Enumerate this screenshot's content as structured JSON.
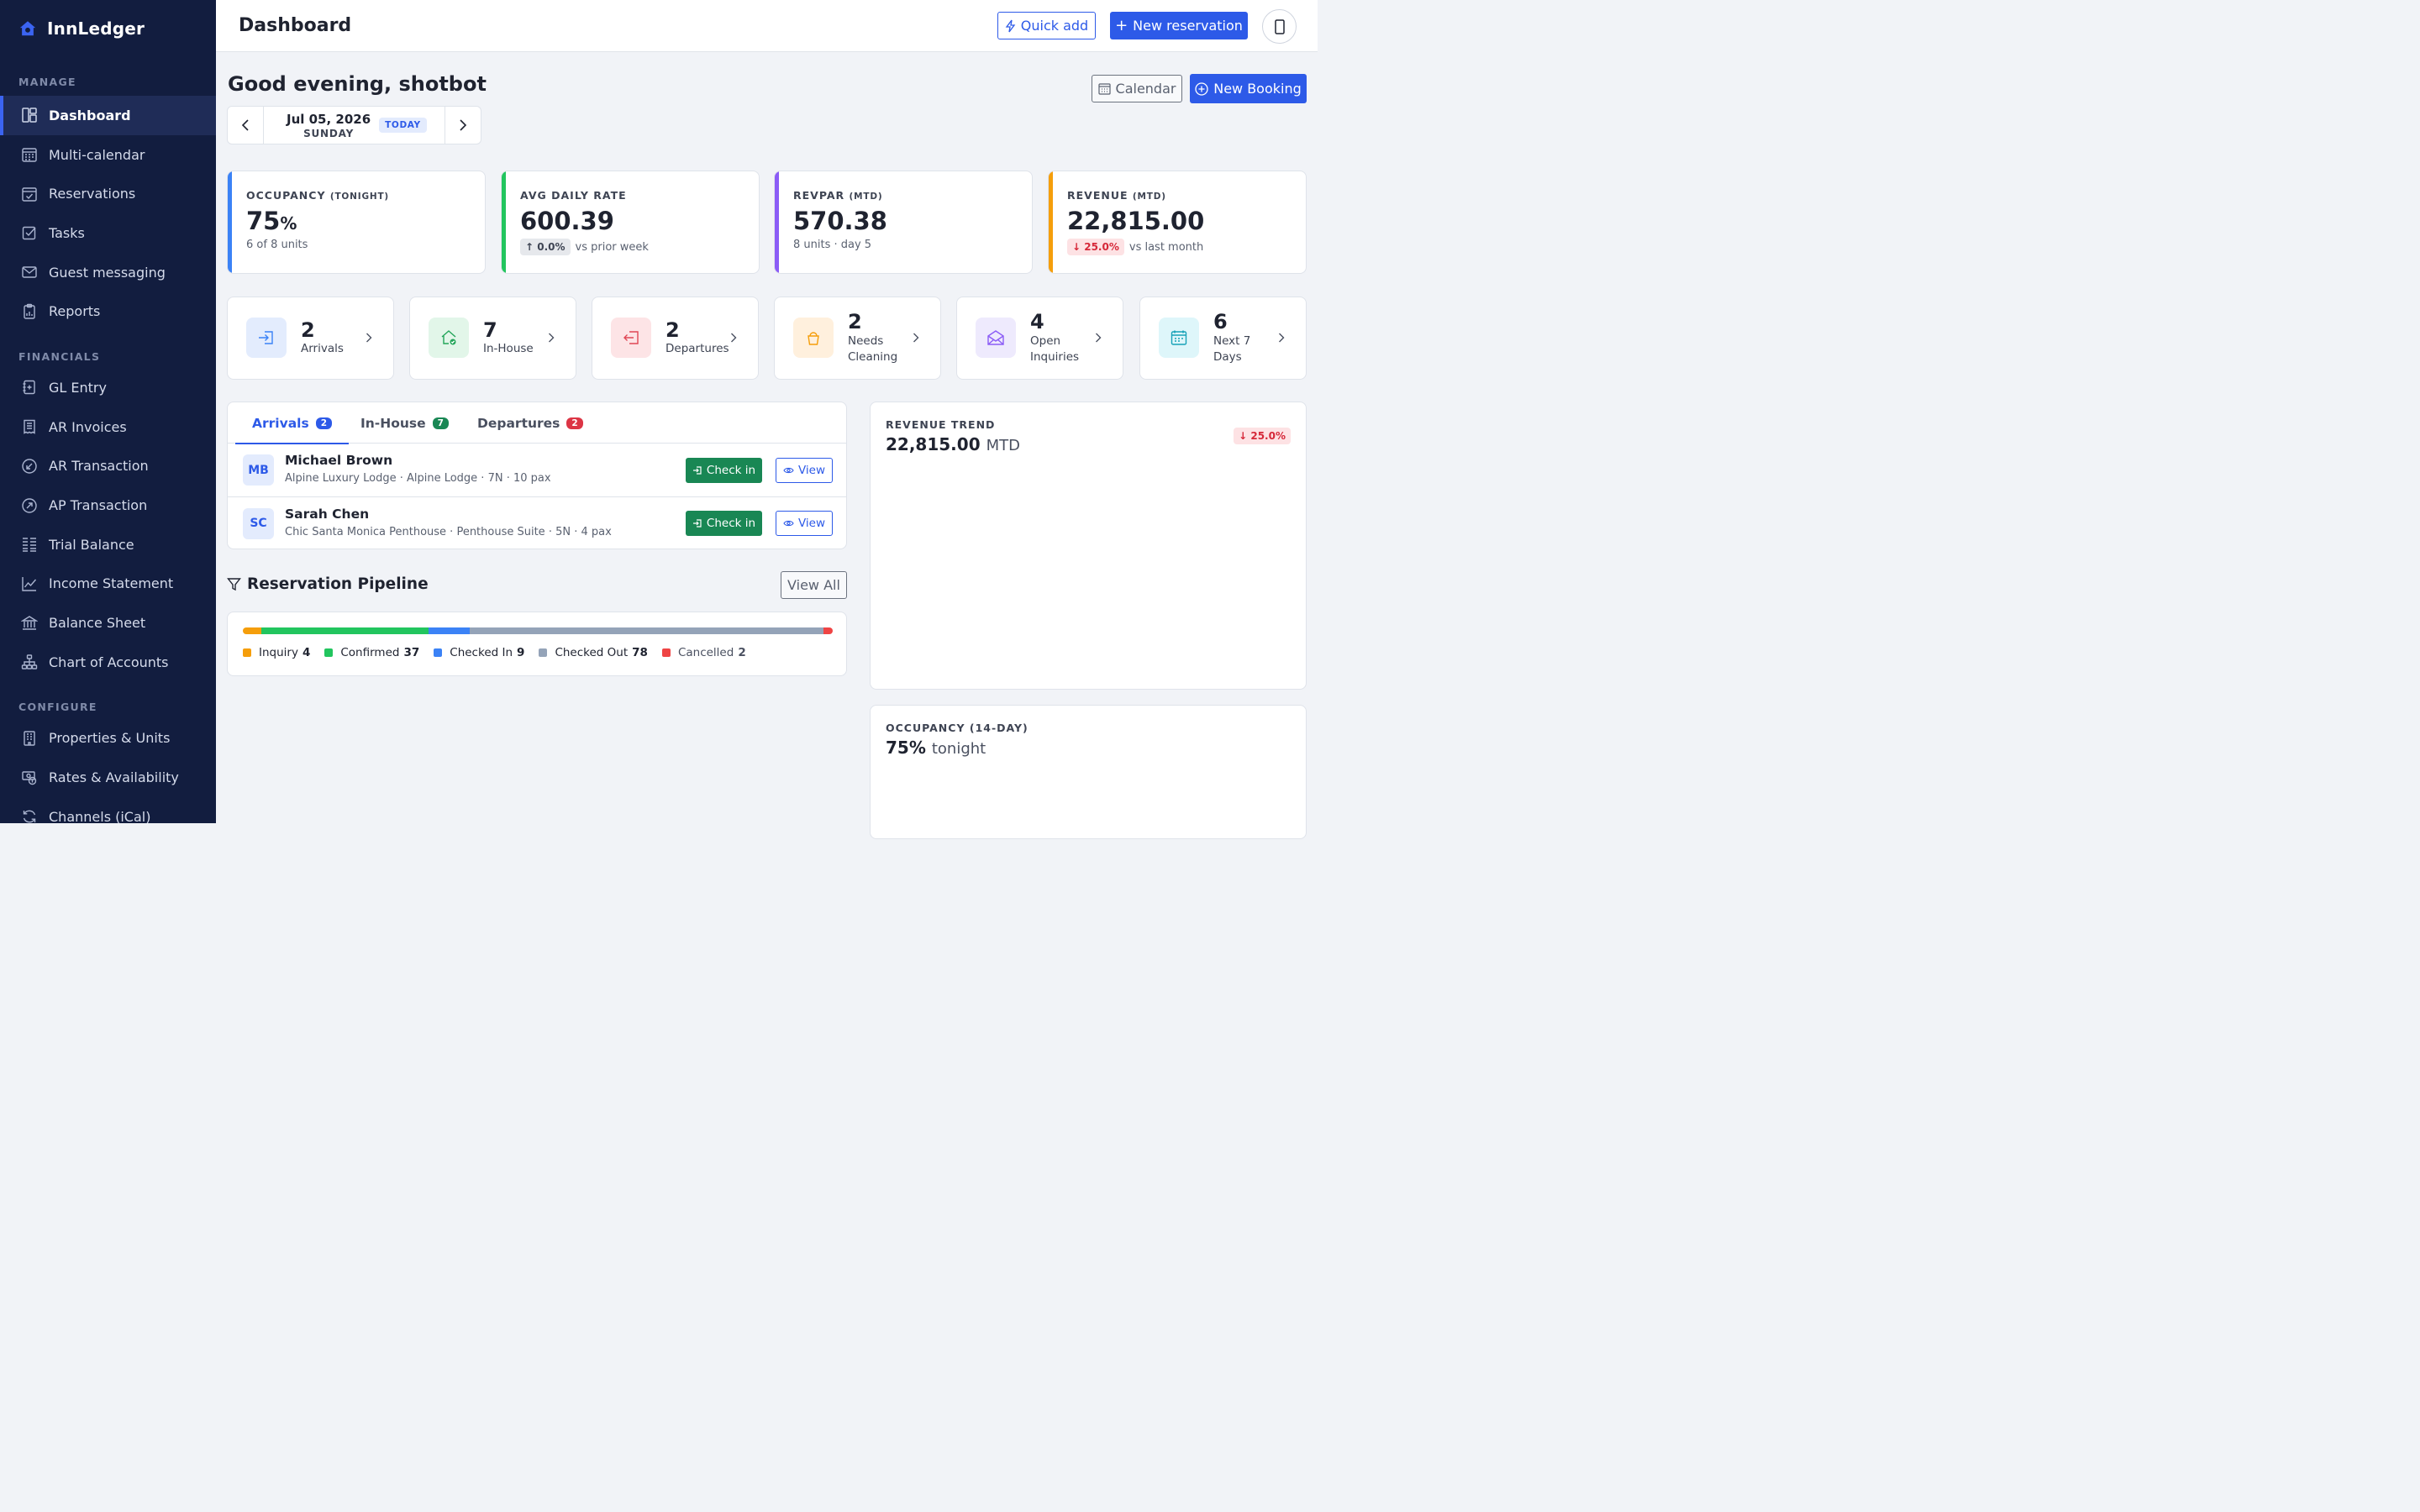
{
  "brand": {
    "name": "InnLedger"
  },
  "sidebar": {
    "sections": {
      "manage": "MANAGE",
      "financials": "FINANCIALS",
      "configure": "CONFIGURE"
    },
    "manage_items": [
      {
        "label": "Dashboard",
        "icon": "dashboard-icon"
      },
      {
        "label": "Multi-calendar",
        "icon": "calendar-grid-icon"
      },
      {
        "label": "Reservations",
        "icon": "calendar-check-icon"
      },
      {
        "label": "Tasks",
        "icon": "checkbox-icon"
      },
      {
        "label": "Guest messaging",
        "icon": "envelope-icon"
      },
      {
        "label": "Reports",
        "icon": "report-icon"
      }
    ],
    "financial_items": [
      {
        "label": "GL Entry",
        "icon": "journal-plus-icon"
      },
      {
        "label": "AR Invoices",
        "icon": "receipt-icon"
      },
      {
        "label": "AR Transaction",
        "icon": "arrow-down-left-circle-icon"
      },
      {
        "label": "AP Transaction",
        "icon": "arrow-up-right-circle-icon"
      },
      {
        "label": "Trial Balance",
        "icon": "list-columns-icon"
      },
      {
        "label": "Income Statement",
        "icon": "graph-up-icon"
      },
      {
        "label": "Balance Sheet",
        "icon": "bank-icon"
      },
      {
        "label": "Chart of Accounts",
        "icon": "hierarchy-icon"
      }
    ],
    "configure_items": [
      {
        "label": "Properties & Units",
        "icon": "building-icon"
      },
      {
        "label": "Rates & Availability",
        "icon": "cash-coin-icon"
      },
      {
        "label": "Channels (iCal)",
        "icon": "sync-icon"
      }
    ]
  },
  "topbar": {
    "title": "Dashboard",
    "quick_add": "Quick add",
    "new_reservation": "New reservation"
  },
  "main": {
    "greeting": "Good evening, shotbot",
    "date": {
      "main": "Jul 05, 2026",
      "weekday": "SUNDAY",
      "today": "TODAY"
    },
    "calendar_button": "Calendar",
    "new_booking_button": "New Booking"
  },
  "kpis": [
    {
      "label": "OCCUPANCY",
      "qualifier": "(TONIGHT)",
      "value": "75",
      "unit": "%",
      "sub": "6 of 8 units",
      "accent": "#3b82f6"
    },
    {
      "label": "AVG DAILY RATE",
      "qualifier": "",
      "value": "600.39",
      "chip": "↑ 0.0%",
      "sub": "vs prior week",
      "accent": "#22c55e"
    },
    {
      "label": "REVPAR",
      "qualifier": "(MTD)",
      "value": "570.38",
      "sub": "8 units · day 5",
      "accent": "#8b5cf6"
    },
    {
      "label": "REVENUE",
      "qualifier": "(MTD)",
      "value": "22,815.00",
      "chip": "↓ 25.0%",
      "sub": "vs last month",
      "accent": "#f59e0b"
    }
  ],
  "tiles": [
    {
      "num": "2",
      "label": "Arrivals",
      "icon": "box-arrow-in-icon",
      "bg": "#e3ecfd",
      "fg": "#3b82f6"
    },
    {
      "num": "7",
      "label": "In-House",
      "icon": "house-check-icon",
      "bg": "#e2f6e9",
      "fg": "#22a559"
    },
    {
      "num": "2",
      "label": "Departures",
      "icon": "box-arrow-left-icon",
      "bg": "#fde4e6",
      "fg": "#e04755"
    },
    {
      "num": "2",
      "label": "Needs Cleaning",
      "icon": "bucket-icon",
      "bg": "#fff0dd",
      "fg": "#f59e0b"
    },
    {
      "num": "4",
      "label": "Open Inquiries",
      "icon": "envelope-open-icon",
      "bg": "#eeeafd",
      "fg": "#8b5cf6"
    },
    {
      "num": "6",
      "label": "Next 7 Days",
      "icon": "calendar-week-icon",
      "bg": "#def6fa",
      "fg": "#17a2b8"
    }
  ],
  "guest_tabs": [
    {
      "label": "Arrivals",
      "count": "2",
      "color": "#2d5ae8"
    },
    {
      "label": "In-House",
      "count": "7",
      "color": "#198754"
    },
    {
      "label": "Departures",
      "count": "2",
      "color": "#dc3545"
    }
  ],
  "arrivals": [
    {
      "initials": "MB",
      "name": "Michael Brown",
      "meta": "Alpine Luxury Lodge · Alpine Lodge · 7N · 10 pax"
    },
    {
      "initials": "SC",
      "name": "Sarah Chen",
      "meta": "Chic Santa Monica Penthouse · Penthouse Suite · 5N · 4 pax"
    }
  ],
  "row_actions": {
    "check_in": "Check in",
    "view": "View"
  },
  "pipeline": {
    "title": "Reservation Pipeline",
    "view_all": "View All",
    "stages": [
      {
        "label": "Inquiry",
        "count": 4,
        "color": "#f59e0b"
      },
      {
        "label": "Confirmed",
        "count": 37,
        "color": "#22c55e"
      },
      {
        "label": "Checked In",
        "count": 9,
        "color": "#3b82f6"
      },
      {
        "label": "Checked Out",
        "count": 78,
        "color": "#94a3b8"
      },
      {
        "label": "Cancelled",
        "count": 2,
        "color": "#ef4444"
      }
    ]
  },
  "revenue_trend": {
    "label": "REVENUE TREND",
    "value": "22,815.00",
    "suffix": "MTD",
    "chip": "↓ 25.0%"
  },
  "occupancy_trend": {
    "label": "OCCUPANCY (14-DAY)",
    "value": "75%",
    "suffix": "tonight"
  }
}
